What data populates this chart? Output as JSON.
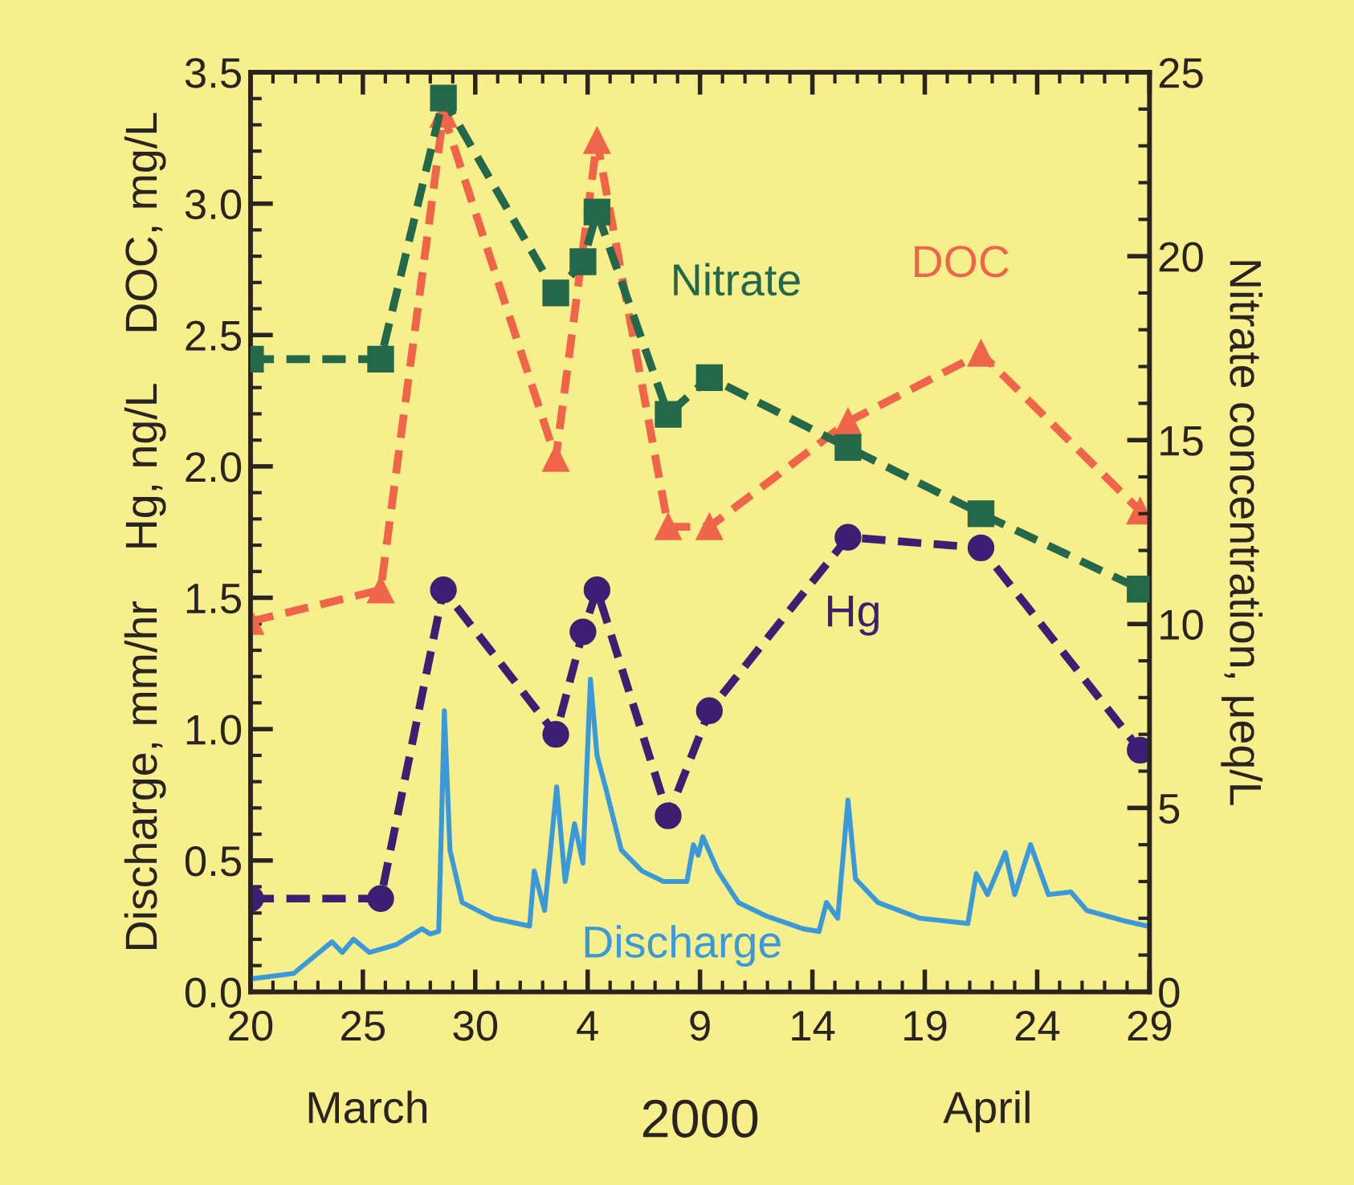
{
  "chart_data": {
    "type": "line",
    "xlabel": "2000",
    "ylabel": "Discharge, mm/hr    Hg, ng/L    DOC, mg/L",
    "y2label": "Nitrate concentration, μeq/L",
    "annotations": [
      "March",
      "April"
    ],
    "xlim": [
      "2000-03-20",
      "2000-04-29"
    ],
    "xticks": [
      {
        "value": "2000-03-20",
        "label": "20"
      },
      {
        "value": "2000-03-25",
        "label": "25"
      },
      {
        "value": "2000-03-30",
        "label": "30"
      },
      {
        "value": "2000-04-04",
        "label": "4"
      },
      {
        "value": "2000-04-09",
        "label": "9"
      },
      {
        "value": "2000-04-14",
        "label": "14"
      },
      {
        "value": "2000-04-19",
        "label": "19"
      },
      {
        "value": "2000-04-24",
        "label": "24"
      },
      {
        "value": "2000-04-29",
        "label": "29"
      }
    ],
    "ylim": [
      0,
      3.5
    ],
    "yticks": [
      {
        "value": 0,
        "label": "0.0"
      },
      {
        "value": 0.5,
        "label": "0.5"
      },
      {
        "value": 1,
        "label": "1.0"
      },
      {
        "value": 1.5,
        "label": "1.5"
      },
      {
        "value": 2,
        "label": "2.0"
      },
      {
        "value": 2.5,
        "label": "2.5"
      },
      {
        "value": 3,
        "label": "3.0"
      },
      {
        "value": 3.5,
        "label": "3.5"
      }
    ],
    "y2lim": [
      0,
      25
    ],
    "y2ticks": [
      0,
      5,
      10,
      15,
      20,
      25
    ],
    "grid": false,
    "legend": false,
    "x": [
      "2000-03-20T00:00",
      "2000-03-25T19:00",
      "2000-03-28T14:00",
      "2000-04-02T14:00",
      "2000-04-03T19:00",
      "2000-04-04T10:00",
      "2000-04-07T14:00",
      "2000-04-09T10:00",
      "2000-04-15T14:00",
      "2000-04-21T12:00",
      "2000-04-28T14:00"
    ],
    "series": [
      {
        "name": "Discharge",
        "color": "#3a9ad9",
        "marker": "none",
        "line_style": "solid",
        "x": [
          "2000-03-20T02:00",
          "2000-03-21T22:00",
          "2000-03-23T15:00",
          "2000-03-24T02:00",
          "2000-03-24T14:00",
          "2000-03-25T07:00",
          "2000-03-26T12:00",
          "2000-03-27T15:00",
          "2000-03-28T00:00",
          "2000-03-28T09:00",
          "2000-03-28T15:00",
          "2000-03-28T21:00",
          "2000-03-29T10:00",
          "2000-03-30T19:00",
          "2000-04-01T10:00",
          "2000-04-01T15:00",
          "2000-04-02T02:00",
          "2000-04-02T15:00",
          "2000-04-03T00:00",
          "2000-04-03T10:00",
          "2000-04-03T19:00",
          "2000-04-04T03:00",
          "2000-04-04T10:00",
          "2000-04-04T19:00",
          "2000-04-05T12:00",
          "2000-04-06T10:00",
          "2000-04-07T09:00",
          "2000-04-08T10:00",
          "2000-04-08T17:00",
          "2000-04-08T22:00",
          "2000-04-09T03:00",
          "2000-04-09T19:00",
          "2000-04-10T17:00",
          "2000-04-11T22:00",
          "2000-04-13T14:00",
          "2000-04-14T07:00",
          "2000-04-14T15:00",
          "2000-04-15T03:00",
          "2000-04-15T14:00",
          "2000-04-15T22:00",
          "2000-04-16T22:00",
          "2000-04-18T19:00",
          "2000-04-20T22:00",
          "2000-04-21T07:00",
          "2000-04-21T19:00",
          "2000-04-22T14:00",
          "2000-04-23T00:00",
          "2000-04-23T17:00",
          "2000-04-24T12:00",
          "2000-04-25T12:00",
          "2000-04-26T05:00",
          "2000-04-27T21:00",
          "2000-04-28T22:00"
        ],
        "values": [
          0.05,
          0.07,
          0.19,
          0.15,
          0.2,
          0.15,
          0.18,
          0.24,
          0.22,
          0.23,
          1.07,
          0.54,
          0.34,
          0.28,
          0.25,
          0.46,
          0.31,
          0.78,
          0.42,
          0.64,
          0.49,
          1.19,
          0.9,
          0.78,
          0.54,
          0.46,
          0.42,
          0.42,
          0.56,
          0.52,
          0.59,
          0.46,
          0.34,
          0.29,
          0.24,
          0.23,
          0.34,
          0.28,
          0.73,
          0.43,
          0.34,
          0.28,
          0.26,
          0.45,
          0.37,
          0.53,
          0.37,
          0.56,
          0.37,
          0.38,
          0.31,
          0.27,
          0.25
        ]
      },
      {
        "name": "Hg",
        "color": "#3b1f72",
        "marker": "circle",
        "line_style": "dashed",
        "values": [
          0.355,
          0.355,
          1.53,
          0.98,
          1.37,
          1.53,
          0.67,
          1.07,
          1.73,
          1.69,
          0.92
        ]
      },
      {
        "name": "DOC",
        "color": "#f0654a",
        "marker": "triangle",
        "line_style": "dashed",
        "x": [
          "2000-03-20T00:00",
          "2000-03-25T19:00",
          "2000-03-28T14:00",
          "2000-04-02T14:00",
          "2000-04-04T10:00",
          "2000-04-07T14:00",
          "2000-04-09T10:00",
          "2000-04-15T14:00",
          "2000-04-21T12:00",
          "2000-04-28T14:00"
        ],
        "values": [
          1.41,
          1.53,
          3.34,
          2.03,
          3.24,
          1.77,
          1.77,
          2.17,
          2.43,
          1.83
        ]
      },
      {
        "name": "Nitrate",
        "color": "#23684a",
        "marker": "square",
        "line_style": "dashed",
        "axis": "y2",
        "values": [
          17.2,
          17.2,
          24.3,
          19.0,
          19.85,
          21.2,
          15.7,
          16.7,
          14.8,
          13.0,
          10.95
        ]
      }
    ]
  }
}
